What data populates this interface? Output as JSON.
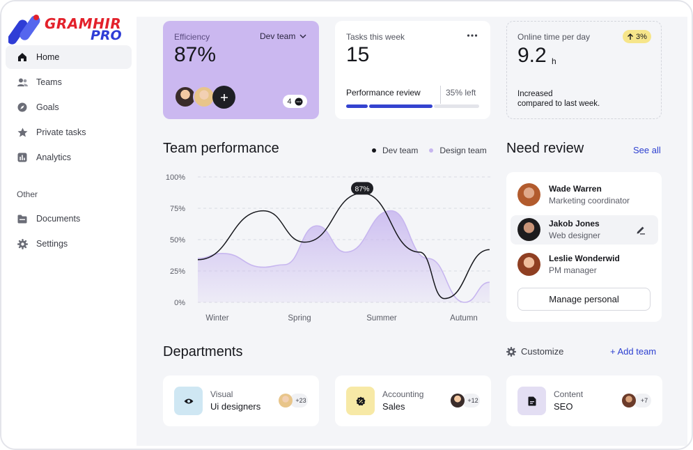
{
  "brand": {
    "word1": "GRAMHIR",
    "word2": "PRO",
    "primary_color": "#2f3dd6",
    "accent_color": "#e3212b"
  },
  "sidebar": {
    "items": [
      {
        "label": "Home",
        "icon": "home-icon",
        "active": true
      },
      {
        "label": "Teams",
        "icon": "users-icon"
      },
      {
        "label": "Goals",
        "icon": "compass-icon"
      },
      {
        "label": "Private tasks",
        "icon": "star-icon"
      },
      {
        "label": "Analytics",
        "icon": "chart-icon"
      }
    ],
    "section_label": "Other",
    "other_items": [
      {
        "label": "Documents",
        "icon": "folder-icon"
      },
      {
        "label": "Settings",
        "icon": "gear-icon"
      }
    ]
  },
  "efficiency": {
    "label": "Efficiency",
    "value": "87%",
    "team_select": "Dev team",
    "comment_count": "4"
  },
  "tasks": {
    "label": "Tasks this week",
    "value": "15",
    "progress_label": "Performance review",
    "remaining": "35% left",
    "progress_fraction": 0.65
  },
  "online": {
    "label": "Online time per day",
    "value": "9.2",
    "unit": "h",
    "badge": "3%",
    "note_line1": "Increased",
    "note_line2": "compared to last week."
  },
  "performance": {
    "title": "Team performance",
    "legend": [
      {
        "name": "Dev team",
        "color": "#16171c"
      },
      {
        "name": "Design team",
        "color": "#c7b6ef"
      }
    ],
    "tooltip": "87%"
  },
  "chart_data": {
    "type": "line",
    "title": "Team performance",
    "x": [
      "Winter",
      "Spring",
      "Summer",
      "Autumn"
    ],
    "yticks": [
      "100%",
      "75%",
      "50%",
      "25%",
      "0%"
    ],
    "ylim": [
      0,
      100
    ],
    "grid": true,
    "legend_position": "top-right",
    "series": [
      {
        "name": "Dev team",
        "color": "#16171c",
        "points": [
          [
            0,
            34
          ],
          [
            0.8,
            73
          ],
          [
            1.3,
            48
          ],
          [
            2.0,
            87
          ],
          [
            2.7,
            40
          ],
          [
            3.0,
            3
          ],
          [
            3.55,
            42
          ]
        ]
      },
      {
        "name": "Design team",
        "color": "#c7b6ef",
        "points": [
          [
            0,
            35
          ],
          [
            0.3,
            39
          ],
          [
            0.8,
            28
          ],
          [
            1.05,
            30
          ],
          [
            1.45,
            61
          ],
          [
            1.8,
            40
          ],
          [
            2.35,
            73
          ],
          [
            2.8,
            35
          ],
          [
            3.25,
            0
          ],
          [
            3.55,
            16
          ]
        ]
      }
    ],
    "annotation": {
      "label": "87%",
      "x": 2.0,
      "y": 87
    }
  },
  "review": {
    "title": "Need review",
    "see_all": "See all",
    "people": [
      {
        "name": "Wade Warren",
        "role": "Marketing coordinator"
      },
      {
        "name": "Jakob Jones",
        "role": "Web designer",
        "active": true
      },
      {
        "name": "Leslie Wonderwid",
        "role": "PM manager"
      }
    ],
    "button": "Manage personal"
  },
  "departments": {
    "title": "Departments",
    "customize": "Customize",
    "add_team": "+ Add team",
    "items": [
      {
        "category": "Visual",
        "name": "Ui designers",
        "count": "+23",
        "icon": "eye-icon",
        "bg": "#cfe7f3"
      },
      {
        "category": "Accounting",
        "name": "Sales",
        "count": "+12",
        "icon": "percent-badge-icon",
        "bg": "#f7e9a6"
      },
      {
        "category": "Content",
        "name": "SEO",
        "count": "+7",
        "icon": "document-icon",
        "bg": "#e3def3"
      }
    ]
  }
}
